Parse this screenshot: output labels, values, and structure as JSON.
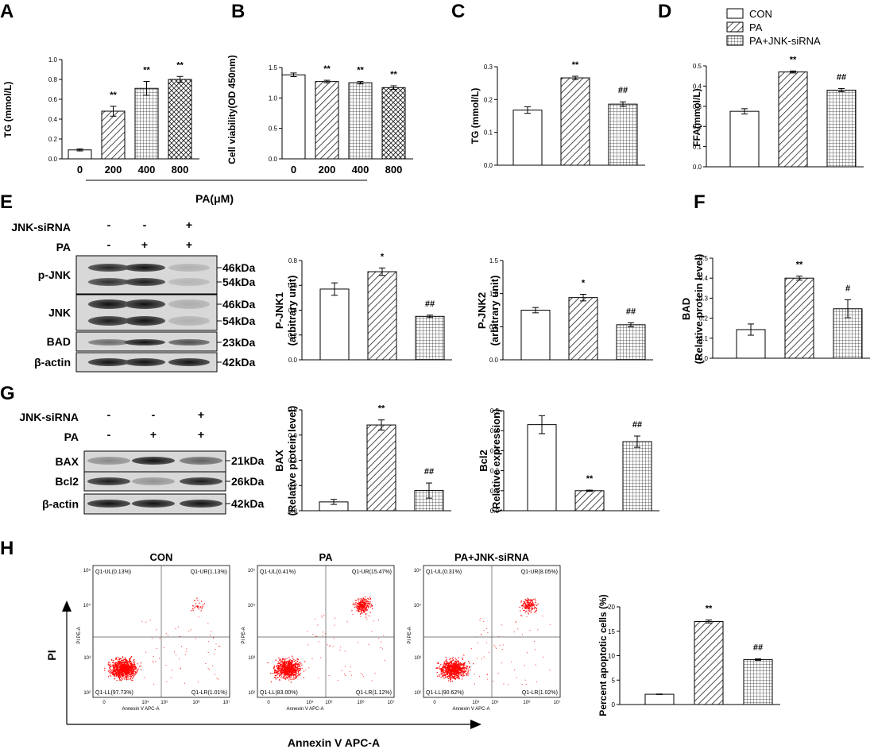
{
  "panels": {
    "A": {
      "letter": "A"
    },
    "B": {
      "letter": "B"
    },
    "C": {
      "letter": "C"
    },
    "D": {
      "letter": "D"
    },
    "E": {
      "letter": "E"
    },
    "F": {
      "letter": "F"
    },
    "G": {
      "letter": "G"
    },
    "H": {
      "letter": "H"
    }
  },
  "legend": {
    "items": [
      {
        "label": "CON",
        "pattern": "empty"
      },
      {
        "label": "PA",
        "pattern": "diag"
      },
      {
        "label": "PA+JNK-siRNA",
        "pattern": "grid"
      }
    ]
  },
  "pa_axis_label": "PA(μM)",
  "chart_data": [
    {
      "id": "A",
      "type": "bar",
      "categories": [
        "0",
        "200",
        "400",
        "800"
      ],
      "values": [
        0.09,
        0.48,
        0.71,
        0.8
      ],
      "errors": [
        0.01,
        0.05,
        0.07,
        0.03
      ],
      "annotations": [
        "",
        "**",
        "**",
        "**"
      ],
      "patterns": [
        "empty",
        "diag",
        "grid",
        "cross"
      ],
      "ylabel": "TG (mmol/L)",
      "ylim": [
        0,
        1.0
      ],
      "yticks": [
        "0.0",
        "0.2",
        "0.4",
        "0.6",
        "0.8",
        "1.0"
      ]
    },
    {
      "id": "B",
      "type": "bar",
      "categories": [
        "0",
        "200",
        "400",
        "800"
      ],
      "values": [
        1.38,
        1.27,
        1.25,
        1.17
      ],
      "errors": [
        0.03,
        0.02,
        0.02,
        0.03
      ],
      "annotations": [
        "",
        "**",
        "**",
        "**"
      ],
      "patterns": [
        "empty",
        "diag",
        "grid",
        "cross"
      ],
      "ylabel": "Cell viability(OD 450nm)",
      "ylim": [
        0,
        1.5
      ],
      "yticks": [
        "0.0",
        "0.5",
        "1.0",
        "1.5"
      ]
    },
    {
      "id": "C",
      "type": "bar",
      "categories": [
        "CON",
        "PA",
        "PA+JNK-siRNA"
      ],
      "values": [
        0.168,
        0.266,
        0.186
      ],
      "errors": [
        0.01,
        0.005,
        0.007
      ],
      "annotations": [
        "",
        "**",
        "##"
      ],
      "patterns": [
        "empty",
        "diag",
        "grid"
      ],
      "ylabel": "TG (mmol/L)",
      "ylim": [
        0,
        0.3
      ],
      "yticks": [
        "0.0",
        "0.1",
        "0.2",
        "0.3"
      ]
    },
    {
      "id": "D",
      "type": "bar",
      "categories": [
        "CON",
        "PA",
        "PA+JNK-siRNA"
      ],
      "values": [
        0.275,
        0.47,
        0.38
      ],
      "errors": [
        0.013,
        0.005,
        0.008
      ],
      "annotations": [
        "",
        "**",
        "##"
      ],
      "patterns": [
        "empty",
        "diag",
        "grid"
      ],
      "ylabel": "FFA(mmol/L)",
      "ylim": [
        0,
        0.5
      ],
      "yticks": [
        "0.0",
        "0.1",
        "0.2",
        "0.3",
        "0.4",
        "0.5"
      ]
    },
    {
      "id": "E1",
      "type": "bar",
      "categories": [
        "CON",
        "PA",
        "PA+JNK-siRNA"
      ],
      "values": [
        0.57,
        0.71,
        0.35
      ],
      "errors": [
        0.05,
        0.03,
        0.01
      ],
      "annotations": [
        "",
        "*",
        "##"
      ],
      "patterns": [
        "empty",
        "diag",
        "grid"
      ],
      "ylabel": "P-JNK1",
      "ylabel2": "(arbitrary unit)",
      "ylim": [
        0,
        0.8
      ],
      "yticks": [
        "0.0",
        "0.2",
        "0.4",
        "0.6",
        "0.8"
      ]
    },
    {
      "id": "E2",
      "type": "bar",
      "categories": [
        "CON",
        "PA",
        "PA+JNK-siRNA"
      ],
      "values": [
        0.75,
        0.94,
        0.53
      ],
      "errors": [
        0.04,
        0.05,
        0.03
      ],
      "annotations": [
        "",
        "*",
        "##"
      ],
      "patterns": [
        "empty",
        "diag",
        "grid"
      ],
      "ylabel": "P-JNK2",
      "ylabel2": "(arbitrary unit)",
      "ylim": [
        0,
        1.5
      ],
      "yticks": [
        "0.0",
        "0.5",
        "1.0",
        "1.5"
      ]
    },
    {
      "id": "F",
      "type": "bar",
      "categories": [
        "CON",
        "PA",
        "PA+JNK-siRNA"
      ],
      "values": [
        0.143,
        0.4,
        0.247
      ],
      "errors": [
        0.028,
        0.01,
        0.045
      ],
      "annotations": [
        "",
        "**",
        "#"
      ],
      "patterns": [
        "empty",
        "diag",
        "grid"
      ],
      "ylabel": "BAD",
      "ylabel2": "(Relative protein level)",
      "ylim": [
        0,
        0.5
      ],
      "yticks": [
        "0.0",
        "0.1",
        "0.2",
        "0.3",
        "0.4",
        "0.5"
      ]
    },
    {
      "id": "G1",
      "type": "bar",
      "categories": [
        "CON",
        "PA",
        "PA+JNK-siRNA"
      ],
      "values": [
        0.07,
        0.68,
        0.16
      ],
      "errors": [
        0.02,
        0.04,
        0.06
      ],
      "annotations": [
        "",
        "**",
        "##"
      ],
      "patterns": [
        "empty",
        "diag",
        "grid"
      ],
      "ylabel": "BAX",
      "ylabel2": "(Relative protein level)",
      "ylim": [
        0,
        0.8
      ],
      "yticks": [
        "0.0",
        "0.2",
        "0.4",
        "0.6",
        "0.8"
      ]
    },
    {
      "id": "G2",
      "type": "bar",
      "categories": [
        "CON",
        "PA",
        "PA+JNK-siRNA"
      ],
      "values": [
        0.43,
        0.1,
        0.345
      ],
      "errors": [
        0.045,
        0.003,
        0.028
      ],
      "annotations": [
        "",
        "**",
        "##"
      ],
      "patterns": [
        "empty",
        "diag",
        "grid"
      ],
      "ylabel": "Bcl2",
      "ylabel2": "(Relative expression)",
      "ylim": [
        0,
        0.5
      ],
      "yticks": [
        "0.0",
        "0.1",
        "0.2",
        "0.3",
        "0.4",
        "0.5"
      ]
    },
    {
      "id": "H",
      "type": "bar",
      "categories": [
        "CON",
        "PA",
        "PA+JNK-siRNA"
      ],
      "values": [
        2.1,
        17.0,
        9.2
      ],
      "errors": [
        0.05,
        0.3,
        0.15
      ],
      "annotations": [
        "",
        "**",
        "##"
      ],
      "patterns": [
        "empty",
        "diag",
        "grid"
      ],
      "ylabel": "Percent apoptotic cells (%)",
      "ylim": [
        0,
        20
      ],
      "yticks": [
        "0",
        "5",
        "10",
        "15",
        "20"
      ]
    }
  ],
  "blots": {
    "E": {
      "treatments": [
        {
          "label": "JNK-siRNA",
          "signs": [
            "-",
            "-",
            "+"
          ]
        },
        {
          "label": "PA",
          "signs": [
            "-",
            "+",
            "+"
          ]
        }
      ],
      "rows": [
        {
          "label": "p-JNK",
          "mw": [
            "46kDa",
            "54kDa"
          ]
        },
        {
          "label": "JNK",
          "mw": [
            "46kDa",
            "54kDa"
          ]
        },
        {
          "label": "BAD",
          "mw": [
            "23kDa"
          ]
        },
        {
          "label": "β-actin",
          "mw": [
            "42kDa"
          ]
        }
      ]
    },
    "G": {
      "treatments": [
        {
          "label": "JNK-siRNA",
          "signs": [
            "-",
            "-",
            "+"
          ]
        },
        {
          "label": "PA",
          "signs": [
            "-",
            "+",
            "+"
          ]
        }
      ],
      "rows": [
        {
          "label": "BAX",
          "mw": [
            "21kDa"
          ]
        },
        {
          "label": "Bcl2",
          "mw": [
            "26kDa"
          ]
        },
        {
          "label": "β-actin",
          "mw": [
            "42kDa"
          ]
        }
      ]
    }
  },
  "flow": {
    "y_axis_label": "PI",
    "x_axis_label": "Annexin V APC-A",
    "plot_x_label": "Annexin  V APC-A",
    "plot_y_label": "PI PE-A",
    "plots": [
      {
        "title": "CON",
        "ul": "Q1-UL(0.13%)",
        "ur": "Q1-UR(1.13%)",
        "ll": "Q1-LL(97.73%)",
        "lr": "Q1-LR(1.01%)"
      },
      {
        "title": "PA",
        "ul": "Q1-UL(0.41%)",
        "ur": "Q1-UR(15.47%)",
        "ll": "Q1-LL(83.00%)",
        "lr": "Q1-LR(1.12%)"
      },
      {
        "title": "PA+JNK-siRNA",
        "ul": "Q1-UL(0.31%)",
        "ur": "Q1-UR(8.05%)",
        "ll": "Q1-LL(90.62%)",
        "lr": "Q1-LR(1.02%)"
      }
    ]
  }
}
